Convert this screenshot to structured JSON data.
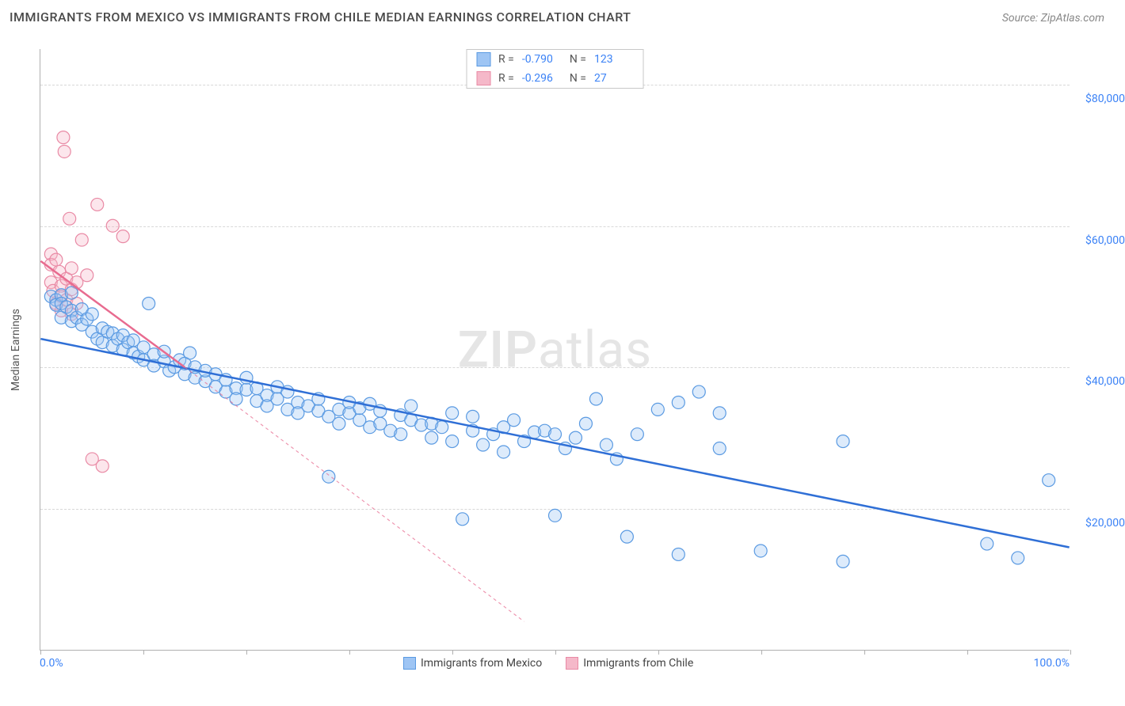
{
  "title": "IMMIGRANTS FROM MEXICO VS IMMIGRANTS FROM CHILE MEDIAN EARNINGS CORRELATION CHART",
  "source": "Source: ZipAtlas.com",
  "watermark_a": "ZIP",
  "watermark_b": "atlas",
  "chart": {
    "type": "scatter",
    "xlim": [
      0,
      100
    ],
    "ylim": [
      0,
      85000
    ],
    "xlabel_min": "0.0%",
    "xlabel_max": "100.0%",
    "ylabel": "Median Earnings",
    "yticks": [
      {
        "v": 20000,
        "label": "$20,000"
      },
      {
        "v": 40000,
        "label": "$40,000"
      },
      {
        "v": 60000,
        "label": "$60,000"
      },
      {
        "v": 80000,
        "label": "$80,000"
      }
    ],
    "xticks_pct": [
      0,
      10,
      20,
      30,
      40,
      50,
      60,
      70,
      80,
      90,
      100
    ],
    "background": "#ffffff",
    "grid_color": "#d8d8d8",
    "axis_color": "#b0b0b0",
    "marker_radius": 8,
    "trend_stroke_width": 2.5,
    "series": [
      {
        "name": "Immigrants from Mexico",
        "fill": "#9ec5f4",
        "stroke": "#5a9ae2",
        "trend_color": "#2f6fd6",
        "trend_dash": "none",
        "r_label": "R =",
        "r_value": "-0.790",
        "n_label": "N =",
        "n_value": "123",
        "trend": {
          "x1": 0,
          "y1": 44000,
          "x2": 100,
          "y2": 14500
        },
        "ext": {
          "x1": 0,
          "y1": 44000,
          "x2": 100,
          "y2": 14500
        },
        "points": [
          [
            1,
            50000
          ],
          [
            1.5,
            49500
          ],
          [
            1.5,
            48800
          ],
          [
            2,
            50200
          ],
          [
            2,
            49000
          ],
          [
            2,
            47000
          ],
          [
            2.5,
            48500
          ],
          [
            3,
            48000
          ],
          [
            3,
            46500
          ],
          [
            3,
            50500
          ],
          [
            3.5,
            47000
          ],
          [
            4,
            46000
          ],
          [
            4,
            48200
          ],
          [
            4.5,
            46800
          ],
          [
            5,
            45000
          ],
          [
            5,
            47500
          ],
          [
            5.5,
            44000
          ],
          [
            6,
            45500
          ],
          [
            6,
            43500
          ],
          [
            6.5,
            45000
          ],
          [
            7,
            44800
          ],
          [
            7,
            43000
          ],
          [
            7.5,
            44000
          ],
          [
            8,
            42500
          ],
          [
            8,
            44500
          ],
          [
            8.5,
            43500
          ],
          [
            9,
            42000
          ],
          [
            9,
            43800
          ],
          [
            9.5,
            41500
          ],
          [
            10,
            42800
          ],
          [
            10,
            41000
          ],
          [
            10.5,
            49000
          ],
          [
            11,
            41800
          ],
          [
            11,
            40200
          ],
          [
            12,
            40800
          ],
          [
            12,
            42200
          ],
          [
            12.5,
            39500
          ],
          [
            13,
            40000
          ],
          [
            13.5,
            41000
          ],
          [
            14,
            39000
          ],
          [
            14,
            40500
          ],
          [
            14.5,
            42000
          ],
          [
            15,
            38500
          ],
          [
            15,
            40000
          ],
          [
            16,
            38000
          ],
          [
            16,
            39500
          ],
          [
            17,
            37200
          ],
          [
            17,
            39000
          ],
          [
            18,
            36500
          ],
          [
            18,
            38200
          ],
          [
            19,
            37000
          ],
          [
            19,
            35500
          ],
          [
            20,
            36800
          ],
          [
            20,
            38500
          ],
          [
            21,
            35200
          ],
          [
            21,
            37000
          ],
          [
            22,
            36000
          ],
          [
            22,
            34500
          ],
          [
            23,
            35500
          ],
          [
            23,
            37200
          ],
          [
            24,
            34000
          ],
          [
            24,
            36500
          ],
          [
            25,
            35000
          ],
          [
            25,
            33500
          ],
          [
            26,
            34500
          ],
          [
            27,
            33800
          ],
          [
            27,
            35500
          ],
          [
            28,
            24500
          ],
          [
            28,
            33000
          ],
          [
            29,
            34000
          ],
          [
            29,
            32000
          ],
          [
            30,
            33500
          ],
          [
            30,
            35000
          ],
          [
            31,
            32500
          ],
          [
            31,
            34200
          ],
          [
            32,
            34800
          ],
          [
            32,
            31500
          ],
          [
            33,
            32000
          ],
          [
            33,
            33800
          ],
          [
            34,
            31000
          ],
          [
            35,
            33200
          ],
          [
            35,
            30500
          ],
          [
            36,
            32500
          ],
          [
            36,
            34500
          ],
          [
            37,
            31800
          ],
          [
            38,
            30000
          ],
          [
            38,
            32000
          ],
          [
            39,
            31500
          ],
          [
            40,
            33500
          ],
          [
            40,
            29500
          ],
          [
            41,
            18500
          ],
          [
            42,
            31000
          ],
          [
            42,
            33000
          ],
          [
            43,
            29000
          ],
          [
            44,
            30500
          ],
          [
            45,
            31500
          ],
          [
            45,
            28000
          ],
          [
            46,
            32500
          ],
          [
            47,
            29500
          ],
          [
            48,
            30800
          ],
          [
            49,
            31000
          ],
          [
            50,
            19000
          ],
          [
            50,
            30500
          ],
          [
            51,
            28500
          ],
          [
            52,
            30000
          ],
          [
            53,
            32000
          ],
          [
            54,
            35500
          ],
          [
            55,
            29000
          ],
          [
            56,
            27000
          ],
          [
            57,
            16000
          ],
          [
            58,
            30500
          ],
          [
            60,
            34000
          ],
          [
            62,
            35000
          ],
          [
            62,
            13500
          ],
          [
            64,
            36500
          ],
          [
            66,
            33500
          ],
          [
            66,
            28500
          ],
          [
            70,
            14000
          ],
          [
            78,
            29500
          ],
          [
            78,
            12500
          ],
          [
            92,
            15000
          ],
          [
            95,
            13000
          ],
          [
            98,
            24000
          ]
        ]
      },
      {
        "name": "Immigrants from Chile",
        "fill": "#f5b8c9",
        "stroke": "#e98aa5",
        "trend_color": "#e86b8f",
        "trend_dash": "4,4",
        "r_label": "R =",
        "r_value": "-0.296",
        "n_label": "N =",
        "n_value": "27",
        "trend": {
          "x1": 0,
          "y1": 55000,
          "x2": 14,
          "y2": 40000
        },
        "ext": {
          "x1": 14,
          "y1": 40000,
          "x2": 47,
          "y2": 4000
        },
        "points": [
          [
            1,
            56000
          ],
          [
            1,
            54500
          ],
          [
            1,
            52000
          ],
          [
            1.2,
            50800
          ],
          [
            1.5,
            55200
          ],
          [
            1.5,
            49000
          ],
          [
            1.8,
            53500
          ],
          [
            2,
            51500
          ],
          [
            2,
            50000
          ],
          [
            2,
            48000
          ],
          [
            2.2,
            72500
          ],
          [
            2.3,
            70500
          ],
          [
            2.5,
            52500
          ],
          [
            2.5,
            49500
          ],
          [
            2.8,
            61000
          ],
          [
            3,
            54000
          ],
          [
            3,
            51000
          ],
          [
            3,
            47500
          ],
          [
            3.5,
            52000
          ],
          [
            3.5,
            49000
          ],
          [
            4,
            58000
          ],
          [
            4.5,
            53000
          ],
          [
            5,
            27000
          ],
          [
            5.5,
            63000
          ],
          [
            6,
            26000
          ],
          [
            7,
            60000
          ],
          [
            8,
            58500
          ]
        ]
      }
    ]
  }
}
